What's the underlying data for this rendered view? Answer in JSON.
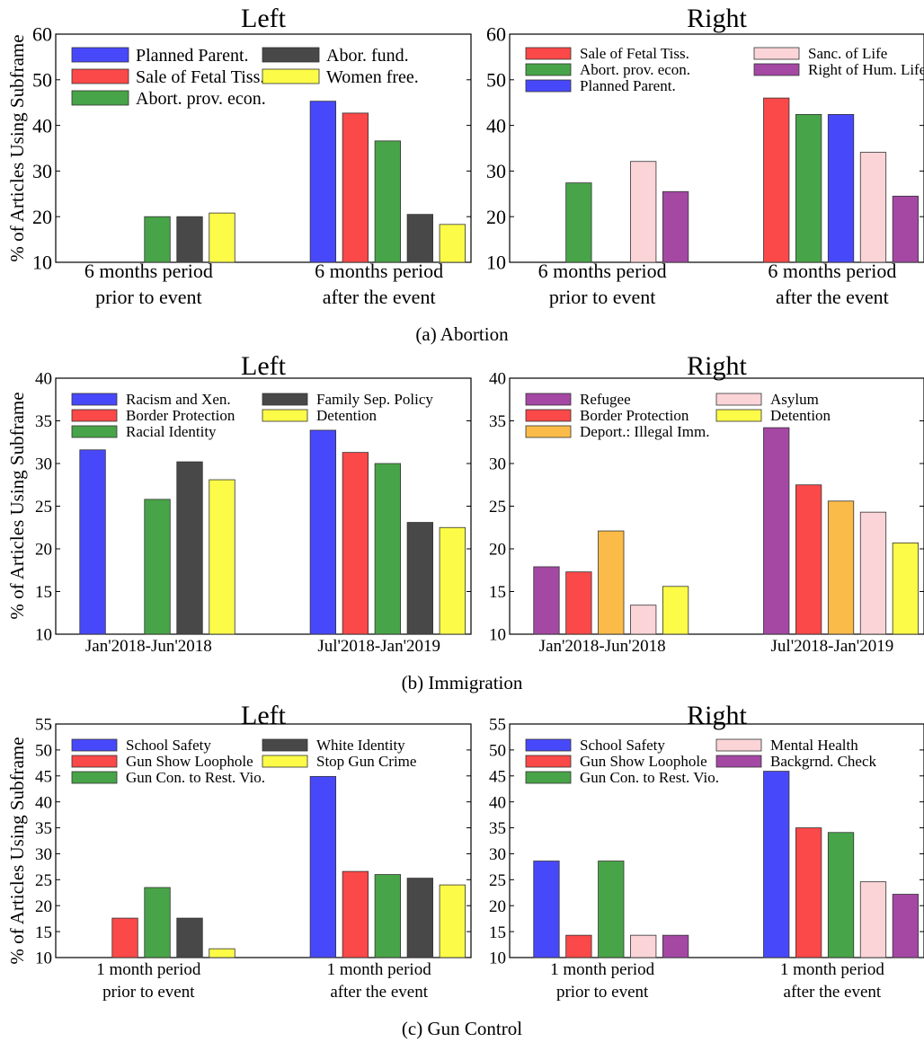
{
  "colors": {
    "blue": "#4848fb",
    "red": "#fb4848",
    "green": "#48a448",
    "dark": "#484848",
    "yellow": "#fbfb48",
    "pink": "#fbd4d8",
    "purple": "#a448a4",
    "orange": "#fbbb48"
  },
  "captions": [
    "(a) Abortion",
    "(b) Immigration",
    "(c) Gun Control"
  ],
  "chart_data": [
    {
      "type": "bar",
      "title": "Left",
      "ylabel": "% of Articles Using Subframe",
      "ylim": [
        10,
        60
      ],
      "yticks": [
        10,
        20,
        30,
        40,
        50,
        60
      ],
      "categories": [
        "6 months period\nprior to event",
        "6 months period\nafter the event"
      ],
      "legend_placement": "top-left",
      "legend_columns": 2,
      "legend_font": 20,
      "groups": [
        [
          {
            "series": "Abort. prov. econ.",
            "value": 20.0
          },
          {
            "series": "Abor. fund.",
            "value": 20.0
          },
          {
            "series": "Women free.",
            "value": 20.8
          }
        ],
        [
          {
            "series": "Planned Parent.",
            "value": 45.3
          },
          {
            "series": "Sale of Fetal Tiss.",
            "value": 42.7
          },
          {
            "series": "Abort. prov. econ.",
            "value": 36.6
          },
          {
            "series": "Abor. fund.",
            "value": 20.5
          },
          {
            "series": "Women free.",
            "value": 18.3
          }
        ]
      ],
      "series": [
        {
          "name": "Planned Parent.",
          "color": "blue"
        },
        {
          "name": "Sale of Fetal Tiss.",
          "color": "red"
        },
        {
          "name": "Abort. prov. econ.",
          "color": "green"
        },
        {
          "name": "Abor. fund.",
          "color": "dark"
        },
        {
          "name": "Women free.",
          "color": "yellow"
        }
      ]
    },
    {
      "type": "bar",
      "title": "Right",
      "ylabel": "",
      "ylim": [
        10,
        60
      ],
      "yticks": [
        10,
        20,
        30,
        40,
        50,
        60
      ],
      "categories": [
        "6 months period\nprior to event",
        "6 months period\nafter the event"
      ],
      "legend_placement": "top-left",
      "legend_columns": 2,
      "legend_font": 17,
      "groups": [
        [
          {
            "series": "Abort. prov. econ.",
            "value": 27.4
          },
          {
            "series": "Sanc. of Life",
            "value": 32.1
          },
          {
            "series": "Right of Hum. Life",
            "value": 25.5
          }
        ],
        [
          {
            "series": "Sale of Fetal Tiss.",
            "value": 46.0
          },
          {
            "series": "Abort. prov. econ.",
            "value": 42.4
          },
          {
            "series": "Planned Parent.",
            "value": 42.4
          },
          {
            "series": "Sanc. of Life",
            "value": 34.1
          },
          {
            "series": "Right of Hum. Life",
            "value": 24.5
          }
        ]
      ],
      "series": [
        {
          "name": "Sale of Fetal Tiss.",
          "color": "red"
        },
        {
          "name": "Abort. prov. econ.",
          "color": "green"
        },
        {
          "name": "Planned Parent.",
          "color": "blue"
        },
        {
          "name": "Sanc. of Life",
          "color": "pink"
        },
        {
          "name": "Right of Hum. Life",
          "color": "purple"
        }
      ]
    },
    {
      "type": "bar",
      "title": "Left",
      "ylabel": "% of Articles Using Subframe",
      "ylim": [
        10,
        40
      ],
      "yticks": [
        10,
        15,
        20,
        25,
        30,
        35,
        40
      ],
      "categories": [
        "Jan'2018-Jun'2018",
        "Jul'2018-Jan'2019"
      ],
      "legend_placement": "top-left",
      "legend_columns": 2,
      "legend_font": 17,
      "groups": [
        [
          {
            "series": "Racism and Xen.",
            "value": 31.6
          },
          {
            "series": "Racial Identity",
            "value": 25.8
          },
          {
            "series": "Family Sep. Policy",
            "value": 30.2
          },
          {
            "series": "Detention",
            "value": 28.1
          }
        ],
        [
          {
            "series": "Racism and Xen.",
            "value": 33.9
          },
          {
            "series": "Border Protection",
            "value": 31.3
          },
          {
            "series": "Racial Identity",
            "value": 30.0
          },
          {
            "series": "Family Sep. Policy",
            "value": 23.1
          },
          {
            "series": "Detention",
            "value": 22.5
          }
        ]
      ],
      "series": [
        {
          "name": "Racism and Xen.",
          "color": "blue"
        },
        {
          "name": "Border Protection",
          "color": "red"
        },
        {
          "name": "Racial Identity",
          "color": "green"
        },
        {
          "name": "Family Sep. Policy",
          "color": "dark"
        },
        {
          "name": "Detention",
          "color": "yellow"
        }
      ]
    },
    {
      "type": "bar",
      "title": "Right",
      "ylabel": "",
      "ylim": [
        10,
        40
      ],
      "yticks": [
        10,
        15,
        20,
        25,
        30,
        35,
        40
      ],
      "categories": [
        "Jan'2018-Jun'2018",
        "Jul'2018-Jan'2019"
      ],
      "legend_placement": "top-left",
      "legend_columns": 2,
      "legend_font": 17,
      "groups": [
        [
          {
            "series": "Refugee",
            "value": 17.9
          },
          {
            "series": "Border Protection",
            "value": 17.3
          },
          {
            "series": "Deport.: Illegal Imm.",
            "value": 22.1
          },
          {
            "series": "Asylum",
            "value": 13.4
          },
          {
            "series": "Detention",
            "value": 15.6
          }
        ],
        [
          {
            "series": "Refugee",
            "value": 34.2
          },
          {
            "series": "Border Protection",
            "value": 27.5
          },
          {
            "series": "Deport.: Illegal Imm.",
            "value": 25.6
          },
          {
            "series": "Asylum",
            "value": 24.3
          },
          {
            "series": "Detention",
            "value": 20.7
          }
        ]
      ],
      "series": [
        {
          "name": "Refugee",
          "color": "purple"
        },
        {
          "name": "Border Protection",
          "color": "red"
        },
        {
          "name": "Deport.: Illegal Imm.",
          "color": "orange"
        },
        {
          "name": "Asylum",
          "color": "pink"
        },
        {
          "name": "Detention",
          "color": "yellow"
        }
      ]
    },
    {
      "type": "bar",
      "title": "Left",
      "ylabel": "% of Articles Using Subframe",
      "ylim": [
        10,
        55
      ],
      "yticks": [
        10,
        15,
        20,
        25,
        30,
        35,
        40,
        45,
        50,
        55
      ],
      "categories": [
        "1 month period\nprior to event",
        "1 month period\nafter the event"
      ],
      "legend_placement": "top-left",
      "legend_columns": 2,
      "legend_font": 17,
      "groups": [
        [
          {
            "series": "Gun Show Loophole",
            "value": 17.6
          },
          {
            "series": "Gun Con. to Rest. Vio.",
            "value": 23.5
          },
          {
            "series": "White Identity",
            "value": 17.6
          },
          {
            "series": "Stop Gun Crime",
            "value": 11.7
          }
        ],
        [
          {
            "series": "School Safety",
            "value": 44.9
          },
          {
            "series": "Gun Show Loophole",
            "value": 26.6
          },
          {
            "series": "Gun Con. to Rest. Vio.",
            "value": 26.0
          },
          {
            "series": "White Identity",
            "value": 25.3
          },
          {
            "series": "Stop Gun Crime",
            "value": 24.0
          }
        ]
      ],
      "series": [
        {
          "name": "School Safety",
          "color": "blue"
        },
        {
          "name": "Gun Show Loophole",
          "color": "red"
        },
        {
          "name": "Gun Con. to Rest. Vio.",
          "color": "green"
        },
        {
          "name": "White Identity",
          "color": "dark"
        },
        {
          "name": "Stop Gun Crime",
          "color": "yellow"
        }
      ]
    },
    {
      "type": "bar",
      "title": "Right",
      "ylabel": "",
      "ylim": [
        10,
        55
      ],
      "yticks": [
        10,
        15,
        20,
        25,
        30,
        35,
        40,
        45,
        50,
        55
      ],
      "categories": [
        "1 month period\nprior to event",
        "1 month period\nafter the event"
      ],
      "legend_placement": "top-left",
      "legend_columns": 2,
      "legend_font": 17,
      "groups": [
        [
          {
            "series": "School Safety",
            "value": 28.6
          },
          {
            "series": "Gun Show Loophole",
            "value": 14.3
          },
          {
            "series": "Gun Con. to Rest. Vio.",
            "value": 28.6
          },
          {
            "series": "Mental Health",
            "value": 14.3
          },
          {
            "series": "Backgrnd. Check",
            "value": 14.3
          }
        ],
        [
          {
            "series": "School Safety",
            "value": 45.9
          },
          {
            "series": "Gun Show Loophole",
            "value": 35.0
          },
          {
            "series": "Gun Con. to Rest. Vio.",
            "value": 34.1
          },
          {
            "series": "Mental Health",
            "value": 24.6
          },
          {
            "series": "Backgrnd. Check",
            "value": 22.2
          }
        ]
      ],
      "series": [
        {
          "name": "School Safety",
          "color": "blue"
        },
        {
          "name": "Gun Show Loophole",
          "color": "red"
        },
        {
          "name": "Gun Con. to Rest. Vio.",
          "color": "green"
        },
        {
          "name": "Mental Health",
          "color": "pink"
        },
        {
          "name": "Backgrnd. Check",
          "color": "purple"
        }
      ]
    }
  ]
}
